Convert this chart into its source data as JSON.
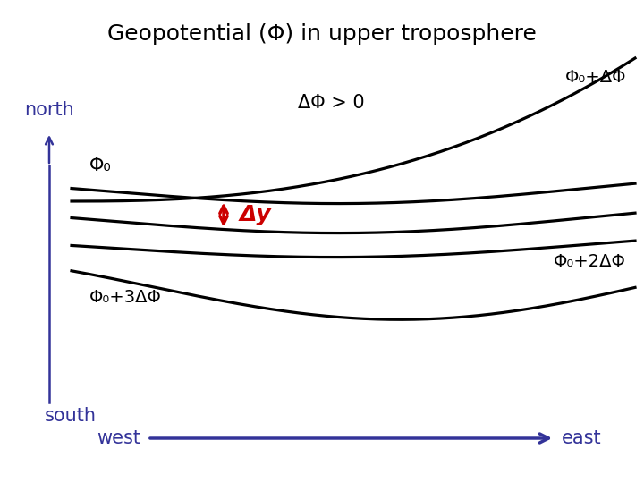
{
  "title": "Geopotential (Φ) in upper troposphere",
  "title_fontsize": 18,
  "background_color": "#ffffff",
  "line_color": "#000000",
  "arrow_color": "#333399",
  "delta_arrow_color": "#cc0000",
  "north_text": "north",
  "south_text": "south",
  "west_text": "west",
  "east_text": "east",
  "delta_phi_label": "ΔΦ > 0",
  "delta_y_label": "Δy",
  "phi0_label": "Φ₀",
  "phi0_dphi_label": "Φ₀+ΔΦ",
  "phi0_2dphi_label": "Φ₀+2ΔΦ",
  "phi0_3dphi_label": "Φ₀+3ΔΦ",
  "label_fontsize": 14,
  "north_fontsize": 15
}
